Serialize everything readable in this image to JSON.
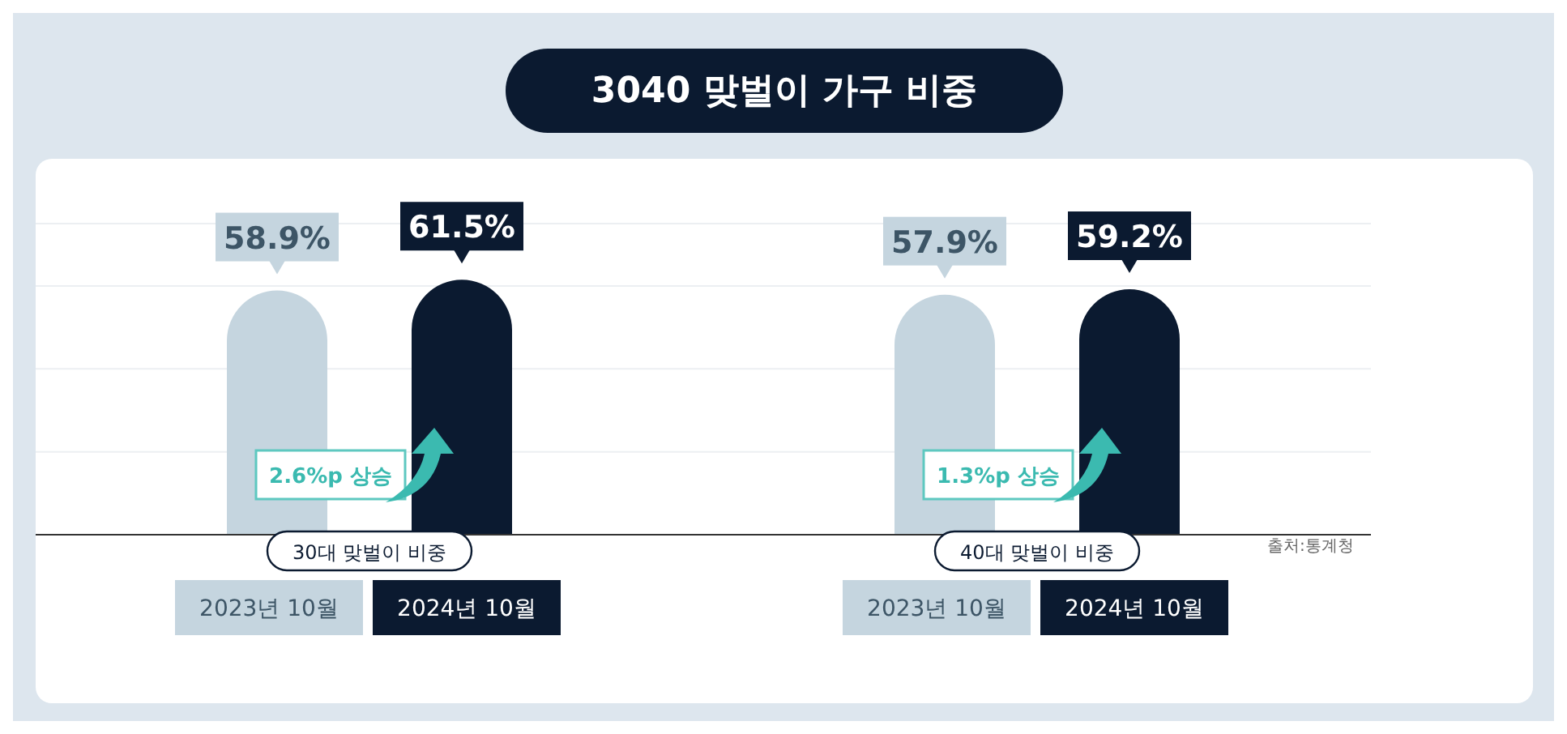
{
  "chart_data": {
    "type": "bar",
    "title": "3040 맞벌이 가구 비중",
    "categories": [
      "30대 맞벌이 비중",
      "40대 맞벌이 비중"
    ],
    "series": [
      {
        "name": "2023년 10월",
        "color": "#c5d5df",
        "values": [
          58.9,
          57.9
        ],
        "value_labels": [
          "58.9%",
          "57.9%"
        ]
      },
      {
        "name": "2024년 10월",
        "color": "#0b1a30",
        "values": [
          61.5,
          59.2
        ],
        "value_labels": [
          "61.5%",
          "59.2%"
        ]
      }
    ],
    "tick_labels": "x",
    "grid": "y",
    "legend": "bottom",
    "annotations": [
      "2.6%p 상승",
      "1.3%p 상승",
      "출처:통계청"
    ]
  }
}
